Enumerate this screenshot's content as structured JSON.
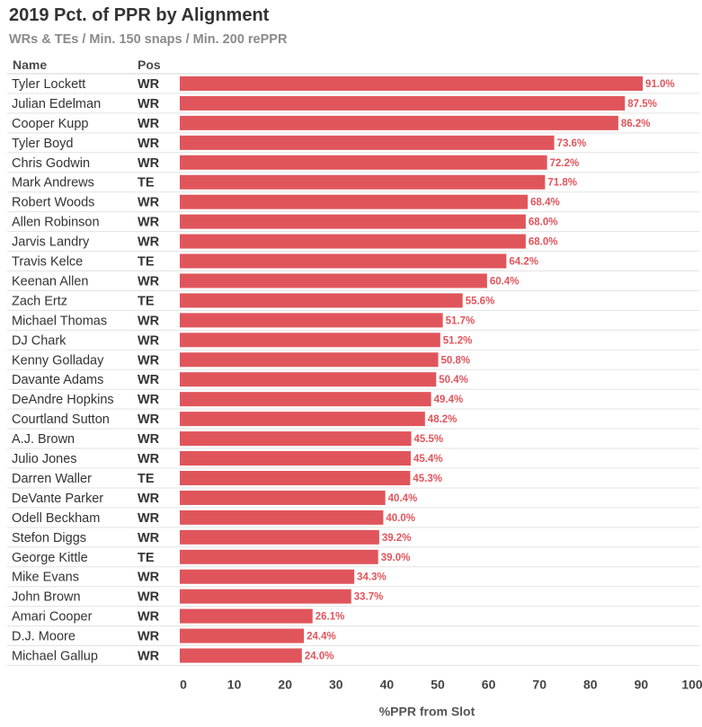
{
  "chart_data": {
    "type": "bar",
    "orientation": "horizontal",
    "title": "2019 Pct. of PPR by Alignment",
    "subtitle": "WRs & TEs / Min. 150 snaps / Min. 200 rePPR",
    "column_headers": {
      "name": "Name",
      "pos": "Pos"
    },
    "xlabel": "%PPR from Slot",
    "xlim": [
      0,
      100
    ],
    "xticks": [
      "0",
      "10",
      "20",
      "30",
      "40",
      "50",
      "60",
      "70",
      "80",
      "90",
      "100"
    ],
    "bar_color": "#e0555b",
    "rows": [
      {
        "name": "Tyler Lockett",
        "pos": "WR",
        "value": 91.0,
        "label": "91.0%"
      },
      {
        "name": "Julian Edelman",
        "pos": "WR",
        "value": 87.5,
        "label": "87.5%"
      },
      {
        "name": "Cooper Kupp",
        "pos": "WR",
        "value": 86.2,
        "label": "86.2%"
      },
      {
        "name": "Tyler Boyd",
        "pos": "WR",
        "value": 73.6,
        "label": "73.6%"
      },
      {
        "name": "Chris Godwin",
        "pos": "WR",
        "value": 72.2,
        "label": "72.2%"
      },
      {
        "name": "Mark Andrews",
        "pos": "TE",
        "value": 71.8,
        "label": "71.8%"
      },
      {
        "name": "Robert Woods",
        "pos": "WR",
        "value": 68.4,
        "label": "68.4%"
      },
      {
        "name": "Allen Robinson",
        "pos": "WR",
        "value": 68.0,
        "label": "68.0%"
      },
      {
        "name": "Jarvis Landry",
        "pos": "WR",
        "value": 68.0,
        "label": "68.0%"
      },
      {
        "name": "Travis Kelce",
        "pos": "TE",
        "value": 64.2,
        "label": "64.2%"
      },
      {
        "name": "Keenan Allen",
        "pos": "WR",
        "value": 60.4,
        "label": "60.4%"
      },
      {
        "name": "Zach Ertz",
        "pos": "TE",
        "value": 55.6,
        "label": "55.6%"
      },
      {
        "name": "Michael Thomas",
        "pos": "WR",
        "value": 51.7,
        "label": "51.7%"
      },
      {
        "name": "DJ Chark",
        "pos": "WR",
        "value": 51.2,
        "label": "51.2%"
      },
      {
        "name": "Kenny Golladay",
        "pos": "WR",
        "value": 50.8,
        "label": "50.8%"
      },
      {
        "name": "Davante Adams",
        "pos": "WR",
        "value": 50.4,
        "label": "50.4%"
      },
      {
        "name": "DeAndre Hopkins",
        "pos": "WR",
        "value": 49.4,
        "label": "49.4%"
      },
      {
        "name": "Courtland Sutton",
        "pos": "WR",
        "value": 48.2,
        "label": "48.2%"
      },
      {
        "name": "A.J. Brown",
        "pos": "WR",
        "value": 45.5,
        "label": "45.5%"
      },
      {
        "name": "Julio Jones",
        "pos": "WR",
        "value": 45.4,
        "label": "45.4%"
      },
      {
        "name": "Darren Waller",
        "pos": "TE",
        "value": 45.3,
        "label": "45.3%"
      },
      {
        "name": "DeVante Parker",
        "pos": "WR",
        "value": 40.4,
        "label": "40.4%"
      },
      {
        "name": "Odell Beckham",
        "pos": "WR",
        "value": 40.0,
        "label": "40.0%"
      },
      {
        "name": "Stefon Diggs",
        "pos": "WR",
        "value": 39.2,
        "label": "39.2%"
      },
      {
        "name": "George Kittle",
        "pos": "TE",
        "value": 39.0,
        "label": "39.0%"
      },
      {
        "name": "Mike Evans",
        "pos": "WR",
        "value": 34.3,
        "label": "34.3%"
      },
      {
        "name": "John Brown",
        "pos": "WR",
        "value": 33.7,
        "label": "33.7%"
      },
      {
        "name": "Amari Cooper",
        "pos": "WR",
        "value": 26.1,
        "label": "26.1%"
      },
      {
        "name": "D.J. Moore",
        "pos": "WR",
        "value": 24.4,
        "label": "24.4%"
      },
      {
        "name": "Michael Gallup",
        "pos": "WR",
        "value": 24.0,
        "label": "24.0%"
      }
    ]
  }
}
